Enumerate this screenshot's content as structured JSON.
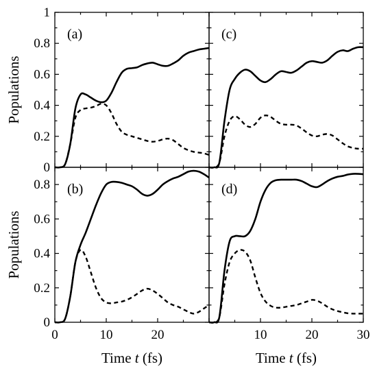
{
  "chart_data": [
    {
      "panel": "(a)",
      "type": "line",
      "xlim": [
        0,
        30
      ],
      "ylim": [
        0,
        1
      ],
      "x_ticks": [],
      "y_ticks": [
        "0",
        "0.2",
        "0.4",
        "0.6",
        "0.8",
        "1"
      ],
      "ylabel": "Populations",
      "series": [
        {
          "style": "solid",
          "points": [
            [
              0,
              0
            ],
            [
              1,
              0
            ],
            [
              2,
              0.02
            ],
            [
              3,
              0.15
            ],
            [
              4,
              0.38
            ],
            [
              5,
              0.47
            ],
            [
              6,
              0.47
            ],
            [
              7,
              0.45
            ],
            [
              8,
              0.43
            ],
            [
              9,
              0.42
            ],
            [
              10,
              0.43
            ],
            [
              11,
              0.48
            ],
            [
              12,
              0.55
            ],
            [
              13,
              0.61
            ],
            [
              14,
              0.635
            ],
            [
              15,
              0.64
            ],
            [
              16,
              0.645
            ],
            [
              17,
              0.66
            ],
            [
              18,
              0.67
            ],
            [
              19,
              0.675
            ],
            [
              20,
              0.665
            ],
            [
              21,
              0.655
            ],
            [
              22,
              0.655
            ],
            [
              23,
              0.67
            ],
            [
              24,
              0.69
            ],
            [
              25,
              0.72
            ],
            [
              26,
              0.74
            ],
            [
              27,
              0.75
            ],
            [
              28,
              0.76
            ],
            [
              29,
              0.765
            ],
            [
              30,
              0.77
            ]
          ]
        },
        {
          "style": "dashed",
          "points": [
            [
              0,
              0
            ],
            [
              1,
              0
            ],
            [
              2,
              0.02
            ],
            [
              3,
              0.15
            ],
            [
              4,
              0.32
            ],
            [
              5,
              0.37
            ],
            [
              6,
              0.38
            ],
            [
              7,
              0.385
            ],
            [
              8,
              0.395
            ],
            [
              9,
              0.41
            ],
            [
              10,
              0.4
            ],
            [
              11,
              0.35
            ],
            [
              12,
              0.28
            ],
            [
              13,
              0.23
            ],
            [
              14,
              0.21
            ],
            [
              15,
              0.2
            ],
            [
              16,
              0.19
            ],
            [
              17,
              0.18
            ],
            [
              18,
              0.17
            ],
            [
              19,
              0.165
            ],
            [
              20,
              0.17
            ],
            [
              21,
              0.18
            ],
            [
              22,
              0.185
            ],
            [
              23,
              0.175
            ],
            [
              24,
              0.15
            ],
            [
              25,
              0.125
            ],
            [
              26,
              0.11
            ],
            [
              27,
              0.1
            ],
            [
              28,
              0.095
            ],
            [
              29,
              0.09
            ],
            [
              30,
              0.08
            ]
          ]
        }
      ]
    },
    {
      "panel": "(c)",
      "type": "line",
      "xlim": [
        0,
        30
      ],
      "ylim": [
        0,
        1
      ],
      "x_ticks": [],
      "y_ticks": [],
      "series": [
        {
          "style": "solid",
          "points": [
            [
              0,
              0
            ],
            [
              1,
              0
            ],
            [
              2,
              0.03
            ],
            [
              3,
              0.3
            ],
            [
              4,
              0.5
            ],
            [
              5,
              0.57
            ],
            [
              6,
              0.61
            ],
            [
              7,
              0.63
            ],
            [
              8,
              0.62
            ],
            [
              9,
              0.59
            ],
            [
              10,
              0.56
            ],
            [
              11,
              0.55
            ],
            [
              12,
              0.57
            ],
            [
              13,
              0.6
            ],
            [
              14,
              0.62
            ],
            [
              15,
              0.615
            ],
            [
              16,
              0.61
            ],
            [
              17,
              0.625
            ],
            [
              18,
              0.65
            ],
            [
              19,
              0.675
            ],
            [
              20,
              0.685
            ],
            [
              21,
              0.68
            ],
            [
              22,
              0.675
            ],
            [
              23,
              0.69
            ],
            [
              24,
              0.72
            ],
            [
              25,
              0.745
            ],
            [
              26,
              0.755
            ],
            [
              27,
              0.75
            ],
            [
              28,
              0.765
            ],
            [
              29,
              0.775
            ],
            [
              30,
              0.775
            ]
          ]
        },
        {
          "style": "dashed",
          "points": [
            [
              0,
              0
            ],
            [
              1,
              0
            ],
            [
              2,
              0.03
            ],
            [
              3,
              0.2
            ],
            [
              4,
              0.3
            ],
            [
              5,
              0.33
            ],
            [
              6,
              0.31
            ],
            [
              7,
              0.275
            ],
            [
              8,
              0.26
            ],
            [
              9,
              0.28
            ],
            [
              10,
              0.32
            ],
            [
              11,
              0.335
            ],
            [
              12,
              0.325
            ],
            [
              13,
              0.3
            ],
            [
              14,
              0.28
            ],
            [
              15,
              0.275
            ],
            [
              16,
              0.275
            ],
            [
              17,
              0.27
            ],
            [
              18,
              0.25
            ],
            [
              19,
              0.225
            ],
            [
              20,
              0.205
            ],
            [
              21,
              0.2
            ],
            [
              22,
              0.21
            ],
            [
              23,
              0.215
            ],
            [
              24,
              0.205
            ],
            [
              25,
              0.18
            ],
            [
              26,
              0.155
            ],
            [
              27,
              0.135
            ],
            [
              28,
              0.125
            ],
            [
              29,
              0.12
            ],
            [
              30,
              0.12
            ]
          ]
        }
      ]
    },
    {
      "panel": "(b)",
      "type": "line",
      "xlim": [
        0,
        30
      ],
      "ylim": [
        0,
        0.9
      ],
      "x_ticks": [
        "0",
        "10",
        "20"
      ],
      "y_ticks": [
        "0",
        "0.2",
        "0.4",
        "0.6",
        "0.8"
      ],
      "xlabel": "Time t (fs)",
      "ylabel": "Populations",
      "series": [
        {
          "style": "solid",
          "points": [
            [
              0,
              0
            ],
            [
              1,
              0
            ],
            [
              2,
              0.02
            ],
            [
              3,
              0.15
            ],
            [
              4,
              0.35
            ],
            [
              5,
              0.45
            ],
            [
              6,
              0.52
            ],
            [
              7,
              0.6
            ],
            [
              8,
              0.68
            ],
            [
              9,
              0.75
            ],
            [
              10,
              0.8
            ],
            [
              11,
              0.815
            ],
            [
              12,
              0.815
            ],
            [
              13,
              0.81
            ],
            [
              14,
              0.8
            ],
            [
              15,
              0.79
            ],
            [
              16,
              0.77
            ],
            [
              17,
              0.745
            ],
            [
              18,
              0.735
            ],
            [
              19,
              0.745
            ],
            [
              20,
              0.77
            ],
            [
              21,
              0.8
            ],
            [
              22,
              0.82
            ],
            [
              23,
              0.835
            ],
            [
              24,
              0.845
            ],
            [
              25,
              0.86
            ],
            [
              26,
              0.875
            ],
            [
              27,
              0.88
            ],
            [
              28,
              0.875
            ],
            [
              29,
              0.86
            ],
            [
              30,
              0.84
            ]
          ]
        },
        {
          "style": "dashed",
          "points": [
            [
              0,
              0
            ],
            [
              1,
              0
            ],
            [
              2,
              0.02
            ],
            [
              3,
              0.15
            ],
            [
              4,
              0.35
            ],
            [
              5,
              0.42
            ],
            [
              6,
              0.38
            ],
            [
              7,
              0.29
            ],
            [
              8,
              0.2
            ],
            [
              9,
              0.14
            ],
            [
              10,
              0.115
            ],
            [
              11,
              0.11
            ],
            [
              12,
              0.115
            ],
            [
              13,
              0.12
            ],
            [
              14,
              0.13
            ],
            [
              15,
              0.145
            ],
            [
              16,
              0.165
            ],
            [
              17,
              0.185
            ],
            [
              18,
              0.195
            ],
            [
              19,
              0.185
            ],
            [
              20,
              0.165
            ],
            [
              21,
              0.14
            ],
            [
              22,
              0.115
            ],
            [
              23,
              0.1
            ],
            [
              24,
              0.09
            ],
            [
              25,
              0.075
            ],
            [
              26,
              0.06
            ],
            [
              27,
              0.05
            ],
            [
              28,
              0.06
            ],
            [
              29,
              0.08
            ],
            [
              30,
              0.1
            ]
          ]
        }
      ]
    },
    {
      "panel": "(d)",
      "type": "line",
      "xlim": [
        0,
        30
      ],
      "ylim": [
        0,
        0.9
      ],
      "x_ticks": [
        "10",
        "20",
        "30"
      ],
      "y_ticks": [],
      "xlabel": "Time t (fs)",
      "series": [
        {
          "style": "solid",
          "points": [
            [
              0,
              0
            ],
            [
              1,
              0
            ],
            [
              2,
              0.03
            ],
            [
              3,
              0.3
            ],
            [
              4,
              0.47
            ],
            [
              5,
              0.5
            ],
            [
              6,
              0.5
            ],
            [
              7,
              0.5
            ],
            [
              8,
              0.53
            ],
            [
              9,
              0.6
            ],
            [
              10,
              0.7
            ],
            [
              11,
              0.77
            ],
            [
              12,
              0.81
            ],
            [
              13,
              0.825
            ],
            [
              14,
              0.828
            ],
            [
              15,
              0.828
            ],
            [
              16,
              0.828
            ],
            [
              17,
              0.828
            ],
            [
              18,
              0.82
            ],
            [
              19,
              0.805
            ],
            [
              20,
              0.79
            ],
            [
              21,
              0.785
            ],
            [
              22,
              0.8
            ],
            [
              23,
              0.82
            ],
            [
              24,
              0.835
            ],
            [
              25,
              0.845
            ],
            [
              26,
              0.85
            ],
            [
              27,
              0.858
            ],
            [
              28,
              0.862
            ],
            [
              29,
              0.862
            ],
            [
              30,
              0.86
            ]
          ]
        },
        {
          "style": "dashed",
          "points": [
            [
              0,
              0
            ],
            [
              1,
              0
            ],
            [
              2,
              0.03
            ],
            [
              3,
              0.22
            ],
            [
              4,
              0.35
            ],
            [
              5,
              0.4
            ],
            [
              6,
              0.42
            ],
            [
              7,
              0.41
            ],
            [
              8,
              0.36
            ],
            [
              9,
              0.26
            ],
            [
              10,
              0.17
            ],
            [
              11,
              0.12
            ],
            [
              12,
              0.095
            ],
            [
              13,
              0.085
            ],
            [
              14,
              0.085
            ],
            [
              15,
              0.09
            ],
            [
              16,
              0.095
            ],
            [
              17,
              0.1
            ],
            [
              18,
              0.11
            ],
            [
              19,
              0.12
            ],
            [
              20,
              0.13
            ],
            [
              21,
              0.125
            ],
            [
              22,
              0.11
            ],
            [
              23,
              0.09
            ],
            [
              24,
              0.075
            ],
            [
              25,
              0.065
            ],
            [
              26,
              0.058
            ],
            [
              27,
              0.052
            ],
            [
              28,
              0.05
            ],
            [
              29,
              0.05
            ],
            [
              30,
              0.05
            ]
          ]
        }
      ]
    }
  ]
}
